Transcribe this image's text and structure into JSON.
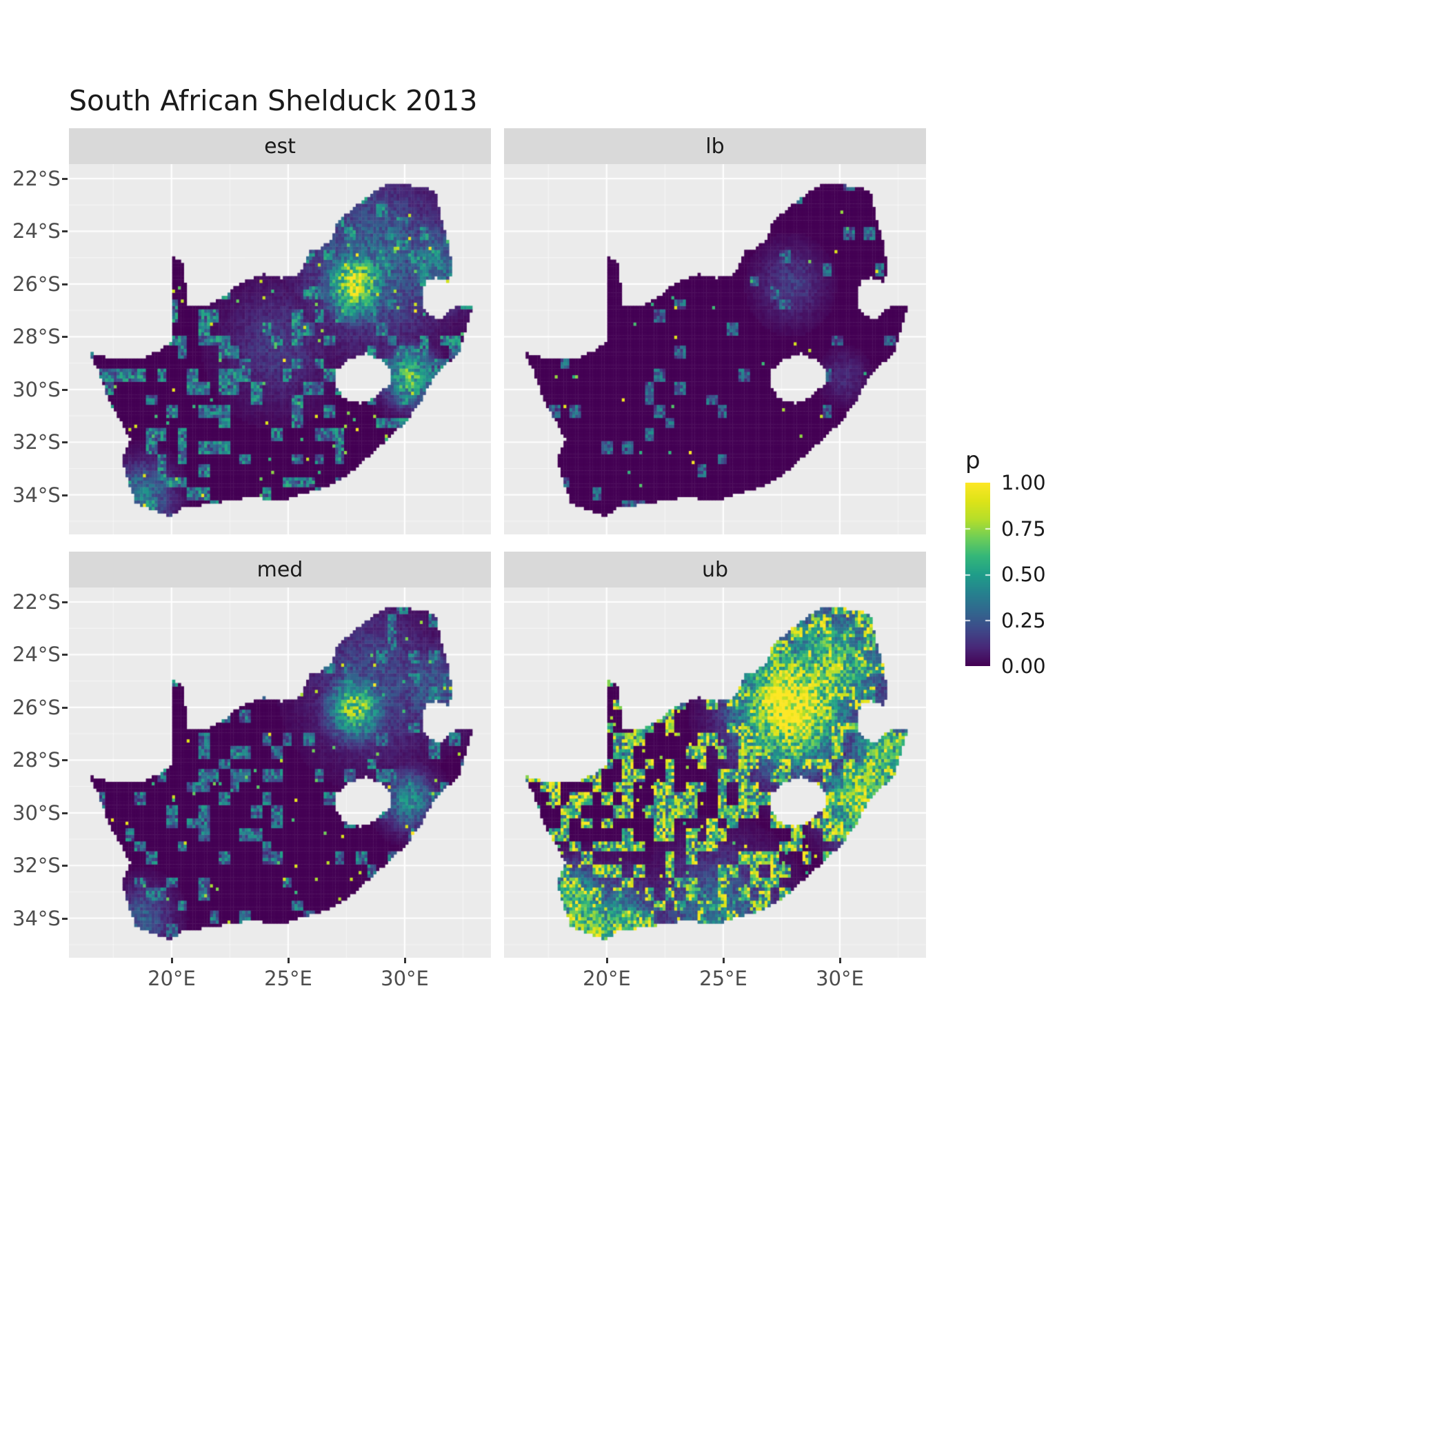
{
  "title": "South African Shelduck 2013",
  "legend": {
    "title": "p",
    "ticks": [
      {
        "label": "1.00",
        "value": 1.0
      },
      {
        "label": "0.75",
        "value": 0.75
      },
      {
        "label": "0.50",
        "value": 0.5
      },
      {
        "label": "0.25",
        "value": 0.25
      },
      {
        "label": "0.00",
        "value": 0.0
      }
    ]
  },
  "axes": {
    "x_ticks": [
      {
        "label": "20°E",
        "lon": 20
      },
      {
        "label": "25°E",
        "lon": 25
      },
      {
        "label": "30°E",
        "lon": 30
      }
    ],
    "y_ticks": [
      {
        "label": "22°S",
        "lat": -22
      },
      {
        "label": "24°S",
        "lat": -24
      },
      {
        "label": "26°S",
        "lat": -26
      },
      {
        "label": "28°S",
        "lat": -28
      },
      {
        "label": "30°S",
        "lat": -30
      },
      {
        "label": "32°S",
        "lat": -32
      },
      {
        "label": "34°S",
        "lat": -34
      }
    ],
    "xlim": [
      15.6,
      33.7
    ],
    "ylim": [
      -35.5,
      -21.45
    ]
  },
  "colors": {
    "panel_bg": "#ebebeb",
    "strip_bg": "#d9d9d9",
    "grid_major": "#ffffff",
    "grid_minor": "rgba(255,255,255,0.6)",
    "axis_text": "#4d4d4d",
    "text": "#1a1a1a",
    "tick": "#333333",
    "zero_cell": "#440154"
  },
  "chart_data": {
    "type": "heatmap",
    "title": "South African Shelduck 2013",
    "value_name": "p",
    "value_domain": [
      0,
      1
    ],
    "palette": "viridis",
    "cell_size_deg": 0.125,
    "value_scale": {
      "colors": [
        "#440154",
        "#482878",
        "#3e4a89",
        "#31688e",
        "#26828e",
        "#1f9e89",
        "#35b779",
        "#6ece58",
        "#b5de2b",
        "#dde318",
        "#fde725"
      ]
    },
    "facets": [
      {
        "label": "est",
        "seed": 3,
        "patch_prob": 0.26,
        "patch_scale": 0.58,
        "spark_prob": 0.012,
        "hotspots": [
          [
            27.9,
            -26.0,
            0.85,
            1.2
          ],
          [
            28.7,
            -25.1,
            2.0,
            0.42
          ],
          [
            30.2,
            -29.5,
            0.7,
            0.85
          ],
          [
            18.8,
            -34.0,
            0.8,
            0.5
          ],
          [
            31.2,
            -25.3,
            1.1,
            0.5
          ],
          [
            24.5,
            -28.3,
            1.5,
            0.2
          ]
        ]
      },
      {
        "label": "lb",
        "seed": 11,
        "patch_prob": 0.06,
        "patch_scale": 0.45,
        "spark_prob": 0.004,
        "hotspots": [
          [
            27.9,
            -26.0,
            0.9,
            0.22
          ],
          [
            30.2,
            -29.5,
            0.6,
            0.15
          ]
        ]
      },
      {
        "label": "med",
        "seed": 23,
        "patch_prob": 0.18,
        "patch_scale": 0.52,
        "spark_prob": 0.008,
        "hotspots": [
          [
            27.9,
            -26.0,
            0.8,
            1.0
          ],
          [
            28.7,
            -25.1,
            1.8,
            0.3
          ],
          [
            30.2,
            -29.5,
            0.7,
            0.6
          ],
          [
            18.8,
            -34.0,
            0.8,
            0.35
          ],
          [
            31.2,
            -25.3,
            1.1,
            0.35
          ]
        ]
      },
      {
        "label": "ub",
        "seed": 31,
        "patch_prob": 0.4,
        "patch_scale": 1.05,
        "spark_prob": 0.02,
        "hotspots": [
          [
            27.9,
            -25.9,
            1.5,
            1.5
          ],
          [
            29.6,
            -24.4,
            1.5,
            0.9
          ],
          [
            30.9,
            -29.5,
            1.0,
            1.1
          ],
          [
            19.2,
            -34.3,
            1.0,
            1.0
          ],
          [
            31.8,
            -27.6,
            0.9,
            0.9
          ],
          [
            20.3,
            -34.5,
            1.2,
            0.8
          ],
          [
            24.8,
            -34.1,
            1.6,
            0.5
          ],
          [
            18.6,
            -33.2,
            0.8,
            0.8
          ],
          [
            31.5,
            -28.6,
            0.8,
            0.9
          ]
        ]
      }
    ],
    "map": {
      "outline": [
        [
          16.45,
          -28.58
        ],
        [
          17.2,
          -28.78
        ],
        [
          18.0,
          -28.87
        ],
        [
          18.8,
          -28.8
        ],
        [
          19.5,
          -28.5
        ],
        [
          20.0,
          -28.23
        ],
        [
          20.0,
          -24.89
        ],
        [
          20.45,
          -25.15
        ],
        [
          20.55,
          -25.75
        ],
        [
          20.68,
          -26.4
        ],
        [
          20.72,
          -26.88
        ],
        [
          21.4,
          -26.83
        ],
        [
          22.05,
          -26.6
        ],
        [
          22.9,
          -26.0
        ],
        [
          23.9,
          -25.62
        ],
        [
          24.75,
          -25.78
        ],
        [
          25.5,
          -25.62
        ],
        [
          25.62,
          -25.45
        ],
        [
          25.9,
          -24.78
        ],
        [
          26.45,
          -24.62
        ],
        [
          26.85,
          -24.28
        ],
        [
          27.15,
          -23.58
        ],
        [
          27.95,
          -23.0
        ],
        [
          28.95,
          -22.32
        ],
        [
          29.7,
          -22.14
        ],
        [
          30.5,
          -22.3
        ],
        [
          31.3,
          -22.42
        ],
        [
          31.55,
          -23.5
        ],
        [
          31.85,
          -24.3
        ],
        [
          32.0,
          -25.1
        ],
        [
          31.95,
          -25.95
        ],
        [
          31.3,
          -25.73
        ],
        [
          30.85,
          -25.92
        ],
        [
          30.78,
          -26.9
        ],
        [
          31.05,
          -27.2
        ],
        [
          31.6,
          -27.32
        ],
        [
          32.13,
          -26.86
        ],
        [
          32.89,
          -26.86
        ],
        [
          32.55,
          -27.95
        ],
        [
          32.35,
          -28.55
        ],
        [
          31.95,
          -28.9
        ],
        [
          31.3,
          -29.45
        ],
        [
          31.03,
          -29.9
        ],
        [
          30.6,
          -30.6
        ],
        [
          30.0,
          -31.25
        ],
        [
          29.3,
          -31.85
        ],
        [
          28.6,
          -32.4
        ],
        [
          27.9,
          -33.0
        ],
        [
          27.0,
          -33.55
        ],
        [
          26.4,
          -33.78
        ],
        [
          25.65,
          -33.95
        ],
        [
          24.8,
          -34.2
        ],
        [
          23.35,
          -34.1
        ],
        [
          22.2,
          -34.25
        ],
        [
          21.0,
          -34.42
        ],
        [
          20.5,
          -34.48
        ],
        [
          20.0,
          -34.82
        ],
        [
          19.3,
          -34.62
        ],
        [
          18.75,
          -34.4
        ],
        [
          18.44,
          -34.33
        ],
        [
          18.33,
          -33.95
        ],
        [
          18.0,
          -33.1
        ],
        [
          17.85,
          -32.75
        ],
        [
          18.25,
          -31.9
        ],
        [
          17.25,
          -30.3
        ],
        [
          16.9,
          -29.35
        ]
      ],
      "lesotho_hole": [
        [
          26.98,
          -29.35
        ],
        [
          27.55,
          -28.88
        ],
        [
          28.3,
          -28.62
        ],
        [
          29.0,
          -28.88
        ],
        [
          29.45,
          -29.3
        ],
        [
          29.35,
          -29.78
        ],
        [
          28.8,
          -30.25
        ],
        [
          28.1,
          -30.55
        ],
        [
          27.4,
          -30.35
        ],
        [
          27.0,
          -29.88
        ]
      ]
    }
  }
}
